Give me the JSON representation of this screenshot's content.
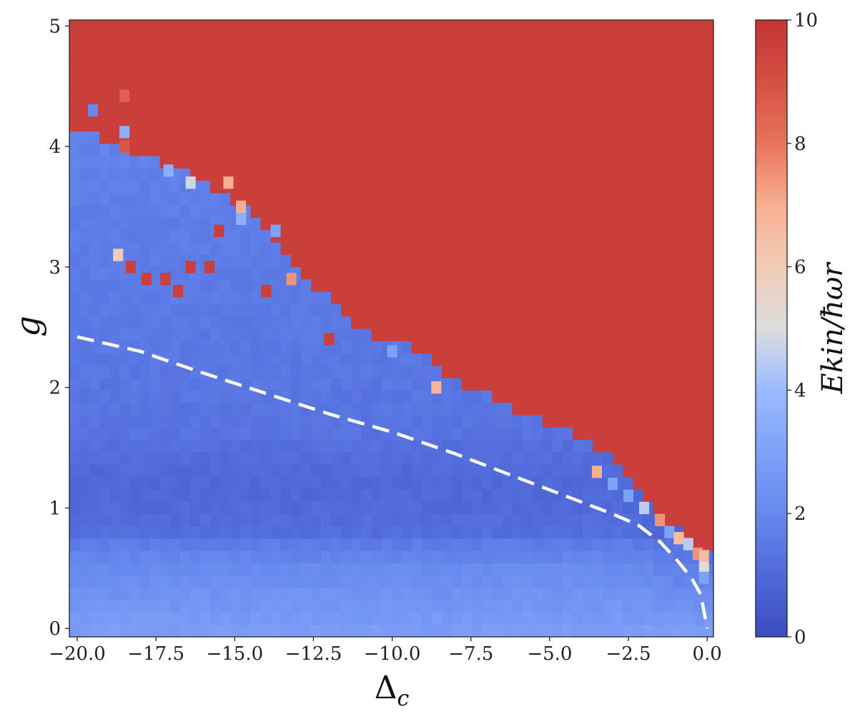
{
  "chart_data": {
    "type": "heatmap",
    "xlabel": "Δ_c",
    "xlabel_main": "Δ",
    "xlabel_sub": "c",
    "ylabel": "g",
    "xlim": [
      -20.0,
      0.0
    ],
    "ylim": [
      0.0,
      5.0
    ],
    "x_ticks": [
      -20.0,
      -17.5,
      -15.0,
      -12.5,
      -10.0,
      -7.5,
      -5.0,
      -2.5,
      0.0
    ],
    "x_tick_labels": [
      "−20.0",
      "−17.5",
      "−15.0",
      "−12.5",
      "−10.0",
      "−7.5",
      "−5.0",
      "−2.5",
      "0.0"
    ],
    "y_ticks": [
      0,
      1,
      2,
      3,
      4,
      5
    ],
    "y_tick_labels": [
      "0",
      "1",
      "2",
      "3",
      "4",
      "5"
    ],
    "grid": false,
    "colormap": "coolwarm",
    "colors": {
      "low": "#3b4cc0",
      "mid": "#dddddd",
      "high": "#b40426"
    },
    "colorbar": {
      "label": "E_kin/ħω_r",
      "label_text": "Ekin/ħωr",
      "range": [
        0,
        10
      ],
      "ticks": [
        0,
        2,
        4,
        6,
        8,
        10
      ],
      "tick_labels": [
        "0",
        "2",
        "4",
        "6",
        "8",
        "10"
      ]
    },
    "saturation_value": 10,
    "boundary_curve": {
      "style": "white-dashed",
      "x": [
        -20.0,
        -18.0,
        -16.0,
        -14.0,
        -12.0,
        -10.0,
        -8.0,
        -6.0,
        -4.0,
        -3.0,
        -2.2,
        -1.5,
        -1.0,
        -0.5,
        -0.2,
        0.0
      ],
      "y": [
        2.42,
        2.3,
        2.12,
        1.95,
        1.78,
        1.63,
        1.45,
        1.25,
        1.05,
        0.95,
        0.86,
        0.72,
        0.58,
        0.42,
        0.28,
        0.0
      ]
    },
    "heating_threshold": {
      "x": [
        -20.0,
        -19.0,
        -18.0,
        -17.0,
        -16.0,
        -15.0,
        -14.0,
        -13.0,
        -12.0,
        -11.0,
        -10.0,
        -9.0,
        -8.0,
        -7.0,
        -6.0,
        -5.0,
        -4.0,
        -3.0,
        -2.0,
        -1.5,
        -1.0,
        -0.5,
        0.0
      ],
      "y": [
        4.12,
        4.05,
        3.95,
        3.85,
        3.68,
        3.55,
        3.3,
        3.0,
        2.72,
        2.45,
        2.4,
        2.3,
        2.05,
        1.95,
        1.8,
        1.68,
        1.58,
        1.4,
        1.12,
        0.92,
        0.82,
        0.72,
        0.62
      ]
    },
    "isolated_cells": [
      {
        "x": -19.5,
        "y": 4.3,
        "value": 2.0
      },
      {
        "x": -18.5,
        "y": 4.42,
        "value": 8.5
      },
      {
        "x": -18.5,
        "y": 4.12,
        "value": 3.5
      },
      {
        "x": -18.5,
        "y": 4.0,
        "value": 8.8
      },
      {
        "x": -17.1,
        "y": 3.8,
        "value": 3.5
      },
      {
        "x": -16.4,
        "y": 3.7,
        "value": 4.8
      },
      {
        "x": -15.2,
        "y": 3.7,
        "value": 7.0
      },
      {
        "x": -14.8,
        "y": 3.5,
        "value": 7.0
      },
      {
        "x": -14.8,
        "y": 3.4,
        "value": 3.5
      },
      {
        "x": -13.7,
        "y": 3.3,
        "value": 3.0
      },
      {
        "x": -13.2,
        "y": 2.9,
        "value": 7.5
      },
      {
        "x": -18.7,
        "y": 3.1,
        "value": 6.0
      },
      {
        "x": -8.6,
        "y": 2.0,
        "value": 6.8
      },
      {
        "x": -10.0,
        "y": 2.3,
        "value": 3.0
      },
      {
        "x": -3.5,
        "y": 1.3,
        "value": 7.0
      },
      {
        "x": -3.0,
        "y": 1.2,
        "value": 3.0
      },
      {
        "x": -2.5,
        "y": 1.1,
        "value": 3.0
      },
      {
        "x": -2.0,
        "y": 1.0,
        "value": 4.5
      },
      {
        "x": -1.5,
        "y": 0.9,
        "value": 7.5
      },
      {
        "x": -1.2,
        "y": 0.8,
        "value": 3.0
      },
      {
        "x": -0.9,
        "y": 0.75,
        "value": 6.5
      },
      {
        "x": -0.6,
        "y": 0.7,
        "value": 4.5
      },
      {
        "x": -0.3,
        "y": 0.62,
        "value": 7.5
      },
      {
        "x": -0.1,
        "y": 0.6,
        "value": 6.5
      },
      {
        "x": -0.1,
        "y": 0.5,
        "value": 5.0
      },
      {
        "x": -0.1,
        "y": 0.42,
        "value": 3.0
      },
      {
        "x": -18.3,
        "y": 3.0,
        "value": 9.6
      },
      {
        "x": -17.8,
        "y": 2.9,
        "value": 9.6
      },
      {
        "x": -17.2,
        "y": 2.9,
        "value": 9.6
      },
      {
        "x": -16.4,
        "y": 3.0,
        "value": 9.6
      },
      {
        "x": -15.8,
        "y": 3.0,
        "value": 9.6
      },
      {
        "x": -16.8,
        "y": 2.8,
        "value": 9.6
      },
      {
        "x": -15.5,
        "y": 3.3,
        "value": 9.6
      },
      {
        "x": -14.0,
        "y": 2.8,
        "value": 9.6
      },
      {
        "x": -12.2,
        "y": 3.0,
        "value": 9.6
      },
      {
        "x": -12.0,
        "y": 2.4,
        "value": 9.6
      }
    ]
  }
}
